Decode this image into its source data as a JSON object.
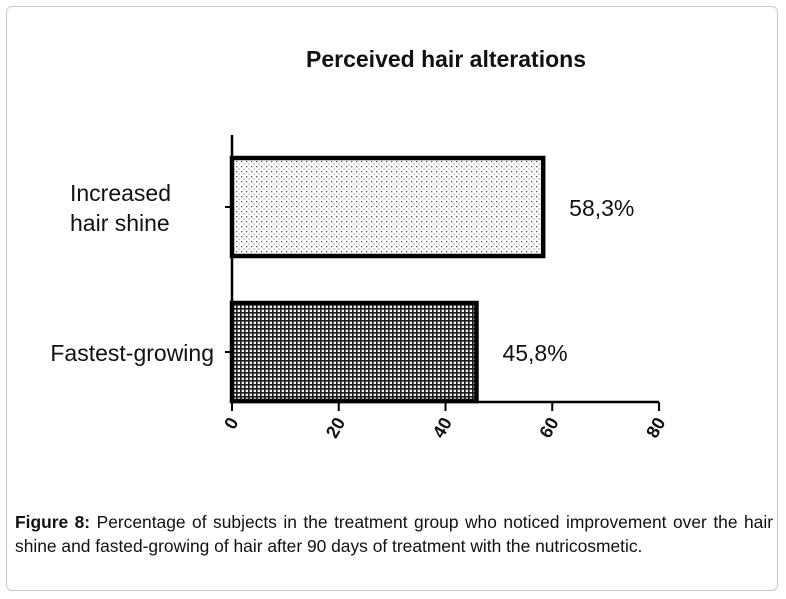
{
  "chart_data": {
    "type": "bar",
    "orientation": "horizontal",
    "title": "Perceived hair alterations",
    "categories": [
      "Increased hair shine",
      "Fastest-growing"
    ],
    "category_lines": [
      [
        "Increased",
        "hair shine"
      ],
      [
        "Fastest-growing"
      ]
    ],
    "values": [
      58.3,
      45.8
    ],
    "value_labels": [
      "58,3%",
      "45,8%"
    ],
    "xlim": [
      0,
      80
    ],
    "xticks": [
      0,
      20,
      40,
      60,
      80
    ],
    "xlabel": "",
    "ylabel": "",
    "grid": false,
    "bar_patterns": [
      "dotted-light",
      "grid-dark"
    ]
  },
  "caption": {
    "label": "Figure 8:",
    "text": " Percentage of subjects in the treatment group who noticed improvement over the hair shine and fasted-growing of hair after 90 days of treatment with the nutricosmetic."
  }
}
